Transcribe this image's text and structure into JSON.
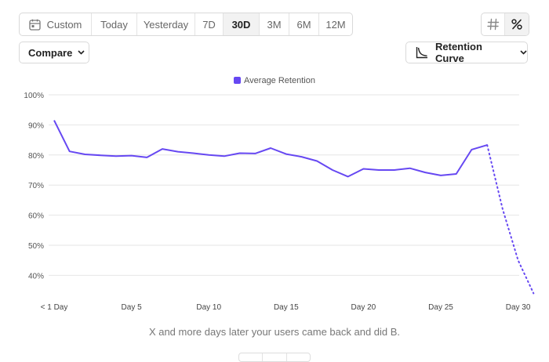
{
  "toolbar": {
    "date_ranges": [
      {
        "label": "Custom",
        "icon": "calendar-icon",
        "active": false
      },
      {
        "label": "Today",
        "active": false
      },
      {
        "label": "Yesterday",
        "active": false
      },
      {
        "label": "7D",
        "active": false
      },
      {
        "label": "30D",
        "active": true
      },
      {
        "label": "3M",
        "active": false
      },
      {
        "label": "6M",
        "active": false
      },
      {
        "label": "12M",
        "active": false
      }
    ],
    "value_mode_icons": [
      "number-icon",
      "percent-icon"
    ],
    "active_value_mode": "percent-icon",
    "compare_label": "Compare",
    "retention_label": "Retention Curve"
  },
  "chart_data": {
    "type": "line",
    "legend": {
      "position": "top-center"
    },
    "series": [
      {
        "name": "Average Retention",
        "color": "#6648f2",
        "values": [
          91.5,
          81.2,
          80.2,
          79.9,
          79.6,
          79.8,
          79.2,
          82.0,
          81.1,
          80.6,
          80.0,
          79.6,
          80.6,
          80.5,
          82.3,
          80.3,
          79.4,
          78.0,
          75.0,
          72.8,
          75.4,
          75.0,
          75.0,
          75.6,
          74.2,
          73.2,
          73.7,
          81.8,
          83.3,
          62.0,
          45.0,
          34.0
        ],
        "dotted_from_index": 28
      }
    ],
    "x": [
      "< 1 Day",
      "Day 1",
      "Day 2",
      "Day 3",
      "Day 4",
      "Day 5",
      "Day 6",
      "Day 7",
      "Day 8",
      "Day 9",
      "Day 10",
      "Day 11",
      "Day 12",
      "Day 13",
      "Day 14",
      "Day 15",
      "Day 16",
      "Day 17",
      "Day 18",
      "Day 19",
      "Day 20",
      "Day 21",
      "Day 22",
      "Day 23",
      "Day 24",
      "Day 25",
      "Day 26",
      "Day 27",
      "Day 28",
      "Day 29",
      "Day 30",
      "Day 31"
    ],
    "x_tick_labels": [
      "< 1 Day",
      "Day 5",
      "Day 10",
      "Day 15",
      "Day 20",
      "Day 25",
      "Day 30"
    ],
    "x_tick_indices": [
      0,
      5,
      10,
      15,
      20,
      25,
      30
    ],
    "y_tick_labels": [
      "100%",
      "90%",
      "80%",
      "70%",
      "60%",
      "50%",
      "40%"
    ],
    "y_ticks": [
      100,
      90,
      80,
      70,
      60,
      50,
      40
    ],
    "ylim": [
      33,
      100
    ],
    "grid": true
  },
  "caption": "X and more days later your users came back and did B."
}
